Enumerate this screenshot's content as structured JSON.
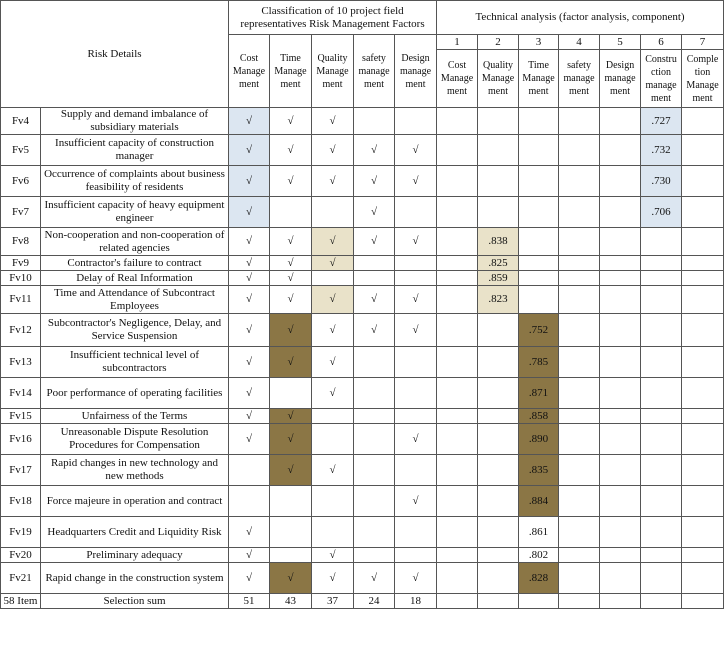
{
  "header": {
    "risk_details": "Risk Details",
    "classification_title": "Classification of 10 project field representatives Risk Management Factors",
    "technical_title": "Technical analysis (factor analysis, component)",
    "class_cols": [
      "Cost Manage ment",
      "Time Manage ment",
      "Quality Manage ment",
      "safety manage ment",
      "Design manage ment"
    ],
    "tech_numbers": [
      "1",
      "2",
      "3",
      "4",
      "5",
      "6",
      "7"
    ],
    "tech_cols": [
      "Cost Manage ment",
      "Quality Manage ment",
      "Time Manage ment",
      "safety manage ment",
      "Design manage ment",
      "Constru ction manage ment",
      "Comple tion Manage ment"
    ]
  },
  "rows": [
    {
      "id": "Fv4",
      "detail": "Supply and demand imbalance of subsidiary materials",
      "marks": [
        "√",
        "√",
        "√",
        "",
        ""
      ],
      "mark_hl": [
        "blue",
        "",
        "",
        "",
        ""
      ],
      "tech": [
        "",
        "",
        "",
        "",
        "",
        ".727",
        ""
      ],
      "tech_hl": [
        "",
        "",
        "",
        "",
        "",
        "blue",
        ""
      ]
    },
    {
      "id": "Fv5",
      "detail": "Insufficient capacity of construction manager",
      "marks": [
        "√",
        "√",
        "√",
        "√",
        "√"
      ],
      "mark_hl": [
        "blue",
        "",
        "",
        "",
        ""
      ],
      "tech": [
        "",
        "",
        "",
        "",
        "",
        ".732",
        ""
      ],
      "tech_hl": [
        "",
        "",
        "",
        "",
        "",
        "blue",
        ""
      ]
    },
    {
      "id": "Fv6",
      "detail": "Occurrence of complaints about business feasibility of residents",
      "marks": [
        "√",
        "√",
        "√",
        "√",
        "√"
      ],
      "mark_hl": [
        "blue",
        "",
        "",
        "",
        ""
      ],
      "tech": [
        "",
        "",
        "",
        "",
        "",
        ".730",
        ""
      ],
      "tech_hl": [
        "",
        "",
        "",
        "",
        "",
        "blue",
        ""
      ]
    },
    {
      "id": "Fv7",
      "detail": "Insufficient capacity of heavy equipment engineer",
      "marks": [
        "√",
        "",
        "",
        "√",
        ""
      ],
      "mark_hl": [
        "blue",
        "",
        "",
        "",
        ""
      ],
      "tech": [
        "",
        "",
        "",
        "",
        "",
        ".706",
        ""
      ],
      "tech_hl": [
        "",
        "",
        "",
        "",
        "",
        "blue",
        ""
      ]
    },
    {
      "id": "Fv8",
      "detail": "Non-cooperation and non-cooperation of related agencies",
      "marks": [
        "√",
        "√",
        "√",
        "√",
        "√"
      ],
      "mark_hl": [
        "",
        "",
        "tan",
        "",
        ""
      ],
      "tech": [
        "",
        ".838",
        "",
        "",
        "",
        "",
        ""
      ],
      "tech_hl": [
        "",
        "tan",
        "",
        "",
        "",
        "",
        ""
      ]
    },
    {
      "id": "Fv9",
      "detail": "Contractor's failure to contract",
      "marks": [
        "√",
        "√",
        "√",
        "",
        ""
      ],
      "mark_hl": [
        "",
        "",
        "tan",
        "",
        ""
      ],
      "tech": [
        "",
        ".825",
        "",
        "",
        "",
        "",
        ""
      ],
      "tech_hl": [
        "",
        "tan",
        "",
        "",
        "",
        "",
        ""
      ]
    },
    {
      "id": "Fv10",
      "detail": "Delay of Real Information",
      "marks": [
        "√",
        "√",
        "",
        "",
        ""
      ],
      "mark_hl": [
        "",
        "",
        "",
        "",
        ""
      ],
      "tech": [
        "",
        ".859",
        "",
        "",
        "",
        "",
        ""
      ],
      "tech_hl": [
        "",
        "tan",
        "",
        "",
        "",
        "",
        ""
      ]
    },
    {
      "id": "Fv11",
      "detail": "Time and Attendance of Subcontract Employees",
      "marks": [
        "√",
        "√",
        "√",
        "√",
        "√"
      ],
      "mark_hl": [
        "",
        "",
        "tan",
        "",
        ""
      ],
      "tech": [
        "",
        ".823",
        "",
        "",
        "",
        "",
        ""
      ],
      "tech_hl": [
        "",
        "tan",
        "",
        "",
        "",
        "",
        ""
      ]
    },
    {
      "id": "Fv12",
      "detail": "Subcontractor's Negligence, Delay, and Service Suspension",
      "marks": [
        "√",
        "√",
        "√",
        "√",
        "√"
      ],
      "mark_hl": [
        "",
        "olive",
        "",
        "",
        ""
      ],
      "tech": [
        "",
        "",
        ".752",
        "",
        "",
        "",
        ""
      ],
      "tech_hl": [
        "",
        "",
        "olive",
        "",
        "",
        "",
        ""
      ]
    },
    {
      "id": "Fv13",
      "detail": "Insufficient technical level of subcontractors",
      "marks": [
        "√",
        "√",
        "√",
        "",
        ""
      ],
      "mark_hl": [
        "",
        "olive",
        "",
        "",
        ""
      ],
      "tech": [
        "",
        "",
        ".785",
        "",
        "",
        "",
        ""
      ],
      "tech_hl": [
        "",
        "",
        "olive",
        "",
        "",
        "",
        ""
      ]
    },
    {
      "id": "Fv14",
      "detail": "Poor performance of operating facilities",
      "marks": [
        "√",
        "",
        "√",
        "",
        ""
      ],
      "mark_hl": [
        "",
        "",
        "",
        "",
        ""
      ],
      "tech": [
        "",
        "",
        ".871",
        "",
        "",
        "",
        ""
      ],
      "tech_hl": [
        "",
        "",
        "olive",
        "",
        "",
        "",
        ""
      ]
    },
    {
      "id": "Fv15",
      "detail": "Unfairness of the Terms",
      "marks": [
        "√",
        "√",
        "",
        "",
        ""
      ],
      "mark_hl": [
        "",
        "olive",
        "",
        "",
        ""
      ],
      "tech": [
        "",
        "",
        ".858",
        "",
        "",
        "",
        ""
      ],
      "tech_hl": [
        "",
        "",
        "olive",
        "",
        "",
        "",
        ""
      ]
    },
    {
      "id": "Fv16",
      "detail": "Unreasonable Dispute Resolution Procedures for Compensation",
      "marks": [
        "√",
        "√",
        "",
        "",
        "√"
      ],
      "mark_hl": [
        "",
        "olive",
        "",
        "",
        ""
      ],
      "tech": [
        "",
        "",
        ".890",
        "",
        "",
        "",
        ""
      ],
      "tech_hl": [
        "",
        "",
        "olive",
        "",
        "",
        "",
        ""
      ]
    },
    {
      "id": "Fv17",
      "detail": "Rapid changes in new technology and new methods",
      "marks": [
        "",
        "√",
        "√",
        "",
        ""
      ],
      "mark_hl": [
        "",
        "olive",
        "",
        "",
        ""
      ],
      "tech": [
        "",
        "",
        ".835",
        "",
        "",
        "",
        ""
      ],
      "tech_hl": [
        "",
        "",
        "olive",
        "",
        "",
        "",
        ""
      ]
    },
    {
      "id": "Fv18",
      "detail": "Force majeure in operation and contract",
      "marks": [
        "",
        "",
        "",
        "",
        "√"
      ],
      "mark_hl": [
        "",
        "",
        "",
        "",
        ""
      ],
      "tech": [
        "",
        "",
        ".884",
        "",
        "",
        "",
        ""
      ],
      "tech_hl": [
        "",
        "",
        "olive",
        "",
        "",
        "",
        ""
      ]
    },
    {
      "id": "Fv19",
      "detail": "Headquarters Credit and Liquidity Risk",
      "marks": [
        "√",
        "",
        "",
        "",
        ""
      ],
      "mark_hl": [
        "",
        "",
        "",
        "",
        ""
      ],
      "tech": [
        "",
        "",
        ".861",
        "",
        "",
        "",
        ""
      ],
      "tech_hl": [
        "",
        "",
        "",
        "",
        "",
        "",
        ""
      ]
    },
    {
      "id": "Fv20",
      "detail": "Preliminary adequacy",
      "marks": [
        "√",
        "",
        "√",
        "",
        ""
      ],
      "mark_hl": [
        "",
        "",
        "",
        "",
        ""
      ],
      "tech": [
        "",
        "",
        ".802",
        "",
        "",
        "",
        ""
      ],
      "tech_hl": [
        "",
        "",
        "",
        "",
        "",
        "",
        ""
      ]
    },
    {
      "id": "Fv21",
      "detail": "Rapid change in the construction system",
      "marks": [
        "√",
        "√",
        "√",
        "√",
        "√"
      ],
      "mark_hl": [
        "",
        "olive",
        "",
        "",
        ""
      ],
      "tech": [
        "",
        "",
        ".828",
        "",
        "",
        "",
        ""
      ],
      "tech_hl": [
        "",
        "",
        "olive",
        "",
        "",
        "",
        ""
      ]
    }
  ],
  "footer": {
    "id": "58 Item",
    "label": "Selection sum",
    "sums": [
      "51",
      "43",
      "37",
      "24",
      "18"
    ]
  },
  "colors": {
    "blue": "#dce6f1",
    "tan": "#e9e2c9",
    "olive": "#8b7645"
  }
}
